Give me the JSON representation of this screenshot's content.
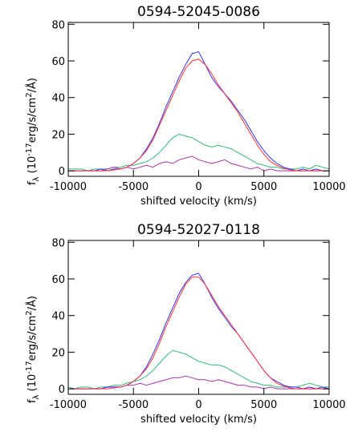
{
  "chart_data": [
    {
      "type": "line",
      "title": "0594-52045-0086",
      "xlabel": "shifted velocity (km/s)",
      "ylabel": [
        {
          "text": "f"
        },
        {
          "text": "λ",
          "script": "sub"
        },
        {
          "text": " (10"
        },
        {
          "text": "-17",
          "script": "super"
        },
        {
          "text": "erg/s/cm"
        },
        {
          "text": "2",
          "script": "super"
        },
        {
          "text": "/Å)"
        }
      ],
      "xlim": [
        -10000,
        10000
      ],
      "ylim": [
        -3,
        81
      ],
      "xticks": [
        -10000,
        -5000,
        0,
        5000,
        10000
      ],
      "yticks": [
        0,
        20,
        40,
        60,
        80
      ],
      "x": [
        -10000,
        -9500,
        -9000,
        -8500,
        -8000,
        -7500,
        -7000,
        -6500,
        -6000,
        -5500,
        -5000,
        -4500,
        -4000,
        -3500,
        -3000,
        -2500,
        -2000,
        -1500,
        -1000,
        -500,
        0,
        500,
        1000,
        1500,
        2000,
        2500,
        3000,
        3500,
        4000,
        4500,
        5000,
        5500,
        6000,
        6500,
        7000,
        7500,
        8000,
        8500,
        9000,
        9500,
        10000
      ],
      "series": [
        {
          "color": "#33bb77",
          "values": [
            1,
            1,
            1,
            0,
            1,
            1,
            1,
            2,
            2,
            3,
            3,
            4,
            5,
            7,
            10,
            14,
            18,
            20,
            19,
            18,
            16,
            14,
            13,
            14,
            13,
            12,
            10,
            8,
            6,
            4,
            3,
            2,
            2,
            1,
            1,
            1,
            2,
            1,
            3,
            2,
            1
          ]
        },
        {
          "color": "#aa33aa",
          "values": [
            0,
            0,
            0,
            0,
            0,
            0,
            1,
            2,
            1,
            2,
            1,
            2,
            3,
            2,
            4,
            5,
            4,
            6,
            7,
            8,
            6,
            5,
            4,
            5,
            6,
            4,
            3,
            2,
            1,
            2,
            0,
            1,
            0,
            0,
            0,
            0,
            0,
            0,
            0,
            0,
            0
          ]
        },
        {
          "color": "#3333ff",
          "values": [
            0,
            0,
            0,
            0,
            0,
            1,
            0,
            1,
            1,
            2,
            4,
            7,
            12,
            18,
            26,
            35,
            43,
            51,
            58,
            64,
            65,
            58,
            51,
            46,
            42,
            38,
            33,
            28,
            22,
            16,
            11,
            7,
            4,
            2,
            1,
            0,
            1,
            0,
            1,
            0,
            0
          ]
        },
        {
          "color": "#ff3333",
          "values": [
            0,
            0,
            0,
            0,
            0,
            0,
            0,
            0.5,
            1,
            2,
            4,
            7,
            11,
            17,
            25,
            33,
            41,
            49,
            56,
            60,
            61,
            58,
            53,
            47,
            42,
            37,
            32,
            26,
            20,
            14,
            9,
            5,
            3,
            1.5,
            0.5,
            0,
            0,
            0,
            0,
            0,
            0
          ]
        }
      ]
    },
    {
      "type": "line",
      "title": "0594-52027-0118",
      "xlabel": "shifted velocity (km/s)",
      "ylabel": [
        {
          "text": "f"
        },
        {
          "text": "λ",
          "script": "sub"
        },
        {
          "text": " (10"
        },
        {
          "text": "-17",
          "script": "super"
        },
        {
          "text": "erg/s/cm"
        },
        {
          "text": "2",
          "script": "super"
        },
        {
          "text": "/Å)"
        }
      ],
      "xlim": [
        -10000,
        10000
      ],
      "ylim": [
        -3,
        81
      ],
      "xticks": [
        -10000,
        -5000,
        0,
        5000,
        10000
      ],
      "yticks": [
        0,
        20,
        40,
        60,
        80
      ],
      "x": [
        -10000,
        -9500,
        -9000,
        -8500,
        -8000,
        -7500,
        -7000,
        -6500,
        -6000,
        -5500,
        -5000,
        -4500,
        -4000,
        -3500,
        -3000,
        -2500,
        -2000,
        -1500,
        -1000,
        -500,
        0,
        500,
        1000,
        1500,
        2000,
        2500,
        3000,
        3500,
        4000,
        4500,
        5000,
        5500,
        6000,
        6500,
        7000,
        7500,
        8000,
        8500,
        9000,
        9500,
        10000
      ],
      "series": [
        {
          "color": "#33bb77",
          "values": [
            1,
            0,
            1,
            1,
            0,
            1,
            1,
            2,
            2,
            3,
            4,
            5,
            7,
            10,
            14,
            18,
            21,
            20,
            19,
            17,
            15,
            14,
            13,
            13,
            12,
            10,
            8,
            6,
            4,
            3,
            2,
            2,
            1,
            1,
            1,
            1,
            2,
            3,
            2,
            1,
            1
          ]
        },
        {
          "color": "#aa33aa",
          "values": [
            0,
            0,
            0,
            0,
            0,
            0,
            1,
            1,
            1,
            2,
            2,
            3,
            2,
            3,
            4,
            5,
            6,
            6,
            7,
            6,
            5,
            5,
            4,
            5,
            4,
            3,
            2,
            2,
            1,
            1,
            0,
            1,
            0,
            0,
            0,
            0,
            0,
            0,
            0,
            0,
            0
          ]
        },
        {
          "color": "#3333ff",
          "values": [
            0,
            0,
            0,
            0,
            0,
            0,
            1,
            1,
            1,
            2,
            4,
            7,
            12,
            19,
            27,
            36,
            44,
            52,
            58,
            62,
            63,
            57,
            50,
            44,
            39,
            34,
            30,
            25,
            20,
            15,
            10,
            6,
            4,
            2,
            1,
            1,
            0,
            1,
            0,
            1,
            0
          ]
        },
        {
          "color": "#ff3333",
          "values": [
            0,
            0,
            0,
            0,
            0,
            0,
            0,
            0.5,
            1,
            2,
            4,
            7,
            11,
            17,
            25,
            34,
            42,
            50,
            57,
            61,
            61,
            57,
            51,
            45,
            40,
            35,
            30,
            25,
            20,
            15,
            10,
            6,
            3,
            1.5,
            0.5,
            0,
            0,
            0,
            0,
            0,
            0
          ]
        }
      ]
    }
  ]
}
